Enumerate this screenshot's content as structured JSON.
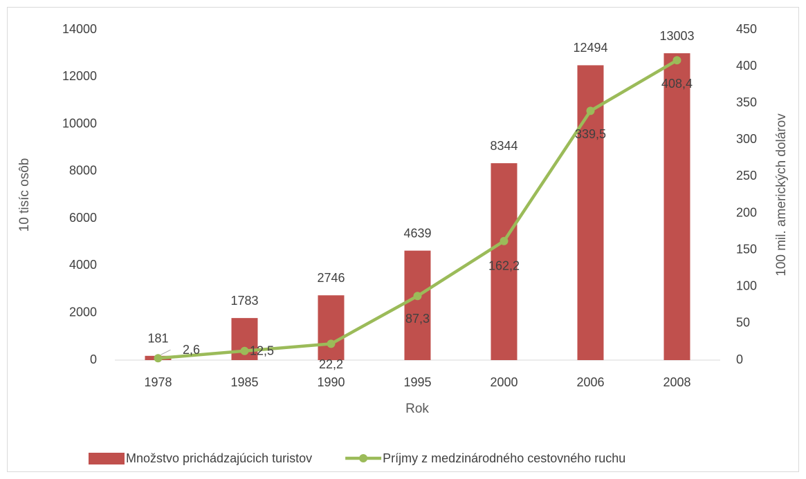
{
  "chart_data": {
    "type": "combo",
    "x_label": "Rok",
    "y_label": "10 tisíc osôb",
    "y2_label": "100 mil. amerických dolárov",
    "categories": [
      "1978",
      "1985",
      "1990",
      "1995",
      "2000",
      "2006",
      "2008"
    ],
    "series": [
      {
        "name": "Množstvo prichádzajúcich turistov",
        "type": "bar",
        "color": "#c0504d",
        "values": [
          181,
          1783,
          2746,
          4639,
          8344,
          12494,
          13003
        ]
      },
      {
        "name": "Príjmy z medzinárodného cestovného ruchu",
        "type": "line",
        "color": "#9bbb59",
        "axis": "y2",
        "values": [
          2.6,
          12.5,
          22.2,
          87.3,
          162.2,
          339.5,
          408.4
        ],
        "value_labels": [
          "2,6",
          "12,5",
          "22,2",
          "87,3",
          "162,2",
          "339,5",
          "408,4"
        ]
      }
    ],
    "ylim": [
      0,
      14000
    ],
    "yticks": [
      0,
      2000,
      4000,
      6000,
      8000,
      10000,
      12000,
      14000
    ],
    "y2lim": [
      0,
      450
    ],
    "y2ticks": [
      0,
      50,
      100,
      150,
      200,
      250,
      300,
      350,
      400,
      450
    ],
    "legend": "bottom"
  }
}
